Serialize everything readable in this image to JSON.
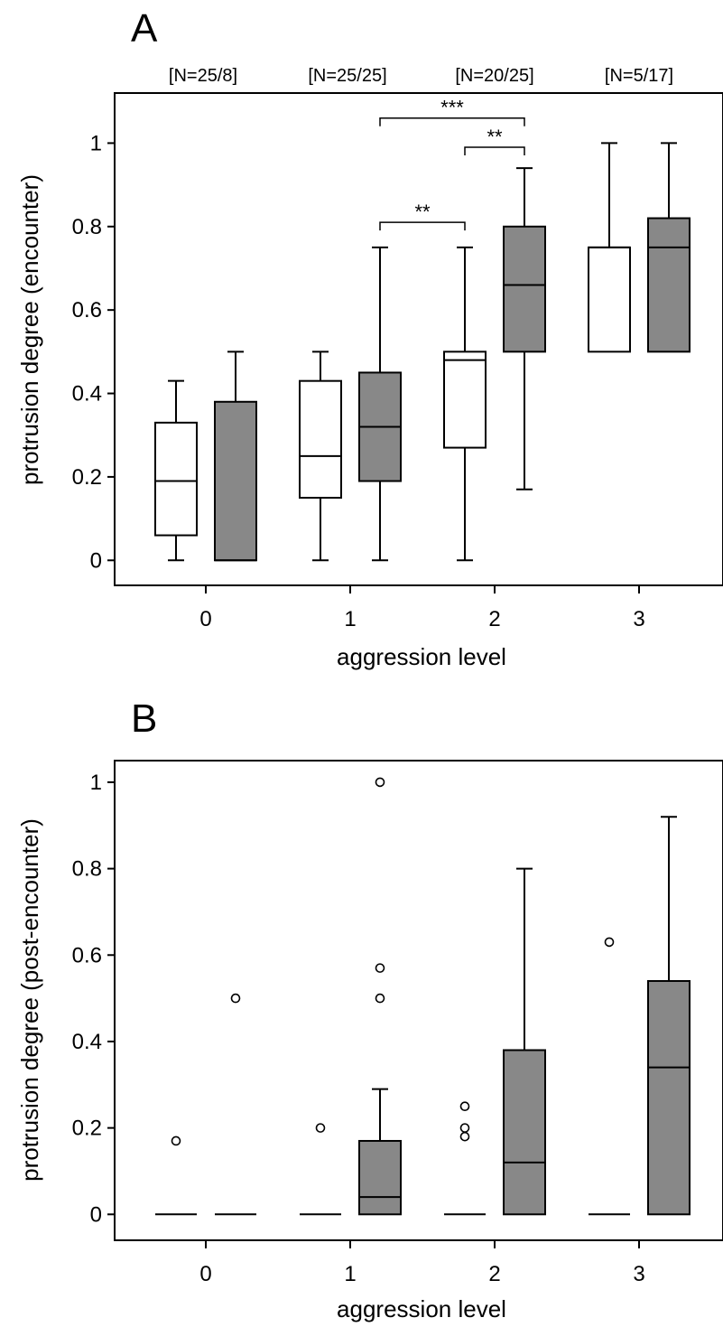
{
  "chart_data": [
    {
      "type": "box",
      "panel": "A",
      "xlabel": "aggression level",
      "ylabel": "protrusion degree (encounter)",
      "categories": [
        "0",
        "1",
        "2",
        "3"
      ],
      "yticks": [
        "0",
        "0.2",
        "0.4",
        "0.6",
        "0.8",
        "1"
      ],
      "ylim": [
        -0.06,
        1.12
      ],
      "group_colors": [
        "#ffffff",
        "#888888"
      ],
      "n_labels": [
        "[N=25/8]",
        "[N=25/25]",
        "[N=20/25]",
        "[N=5/17]"
      ],
      "boxes": [
        {
          "category": "0",
          "group": 0,
          "whisker_low": 0,
          "q1": 0.06,
          "median": 0.19,
          "q3": 0.33,
          "whisker_high": 0.43,
          "outliers": []
        },
        {
          "category": "0",
          "group": 1,
          "whisker_low": 0,
          "q1": 0,
          "median": 0,
          "q3": 0.38,
          "whisker_high": 0.5,
          "outliers": []
        },
        {
          "category": "1",
          "group": 0,
          "whisker_low": 0,
          "q1": 0.15,
          "median": 0.25,
          "q3": 0.43,
          "whisker_high": 0.5,
          "outliers": []
        },
        {
          "category": "1",
          "group": 1,
          "whisker_low": 0,
          "q1": 0.19,
          "median": 0.32,
          "q3": 0.45,
          "whisker_high": 0.75,
          "outliers": []
        },
        {
          "category": "2",
          "group": 0,
          "whisker_low": 0,
          "q1": 0.27,
          "median": 0.48,
          "q3": 0.5,
          "whisker_high": 0.75,
          "outliers": []
        },
        {
          "category": "2",
          "group": 1,
          "whisker_low": 0.17,
          "q1": 0.5,
          "median": 0.66,
          "q3": 0.8,
          "whisker_high": 0.94,
          "outliers": []
        },
        {
          "category": "3",
          "group": 0,
          "whisker_low": 0.5,
          "q1": 0.5,
          "median": 0.75,
          "q3": 0.75,
          "whisker_high": 1,
          "outliers": []
        },
        {
          "category": "3",
          "group": 1,
          "whisker_low": 0.5,
          "q1": 0.5,
          "median": 0.75,
          "q3": 0.82,
          "whisker_high": 1,
          "outliers": []
        }
      ],
      "significance": [
        {
          "from_category": "1",
          "from_group": 1,
          "to_category": "2",
          "to_group": 0,
          "level": 0.81,
          "label": "**"
        },
        {
          "from_category": "2",
          "from_group": 0,
          "to_category": "2",
          "to_group": 1,
          "level": 0.99,
          "label": "**"
        },
        {
          "from_category": "1",
          "from_group": 1,
          "to_category": "2",
          "to_group": 1,
          "level": 1.06,
          "label": "***"
        }
      ]
    },
    {
      "type": "box",
      "panel": "B",
      "xlabel": "aggression level",
      "ylabel": "protrusion degree (post-encounter)",
      "categories": [
        "0",
        "1",
        "2",
        "3"
      ],
      "yticks": [
        "0",
        "0.2",
        "0.4",
        "0.6",
        "0.8",
        "1"
      ],
      "ylim": [
        -0.06,
        1.05
      ],
      "group_colors": [
        "#ffffff",
        "#888888"
      ],
      "n_labels": [],
      "boxes": [
        {
          "category": "0",
          "group": 0,
          "whisker_low": 0,
          "q1": 0,
          "median": 0,
          "q3": 0,
          "whisker_high": 0,
          "outliers": [
            0.17
          ]
        },
        {
          "category": "0",
          "group": 1,
          "whisker_low": 0,
          "q1": 0,
          "median": 0,
          "q3": 0,
          "whisker_high": 0,
          "outliers": [
            0.5
          ]
        },
        {
          "category": "1",
          "group": 0,
          "whisker_low": 0,
          "q1": 0,
          "median": 0,
          "q3": 0,
          "whisker_high": 0,
          "outliers": [
            0.2
          ]
        },
        {
          "category": "1",
          "group": 1,
          "whisker_low": 0,
          "q1": 0,
          "median": 0.04,
          "q3": 0.17,
          "whisker_high": 0.29,
          "outliers": [
            0.5,
            0.57,
            1.0
          ]
        },
        {
          "category": "2",
          "group": 0,
          "whisker_low": 0,
          "q1": 0,
          "median": 0,
          "q3": 0,
          "whisker_high": 0,
          "outliers": [
            0.18,
            0.2,
            0.25
          ]
        },
        {
          "category": "2",
          "group": 1,
          "whisker_low": 0,
          "q1": 0,
          "median": 0.12,
          "q3": 0.38,
          "whisker_high": 0.8,
          "outliers": []
        },
        {
          "category": "3",
          "group": 0,
          "whisker_low": 0,
          "q1": 0,
          "median": 0,
          "q3": 0,
          "whisker_high": 0,
          "outliers": [
            0.63
          ]
        },
        {
          "category": "3",
          "group": 1,
          "whisker_low": 0,
          "q1": 0,
          "median": 0.34,
          "q3": 0.54,
          "whisker_high": 0.92,
          "outliers": []
        }
      ],
      "significance": []
    }
  ]
}
